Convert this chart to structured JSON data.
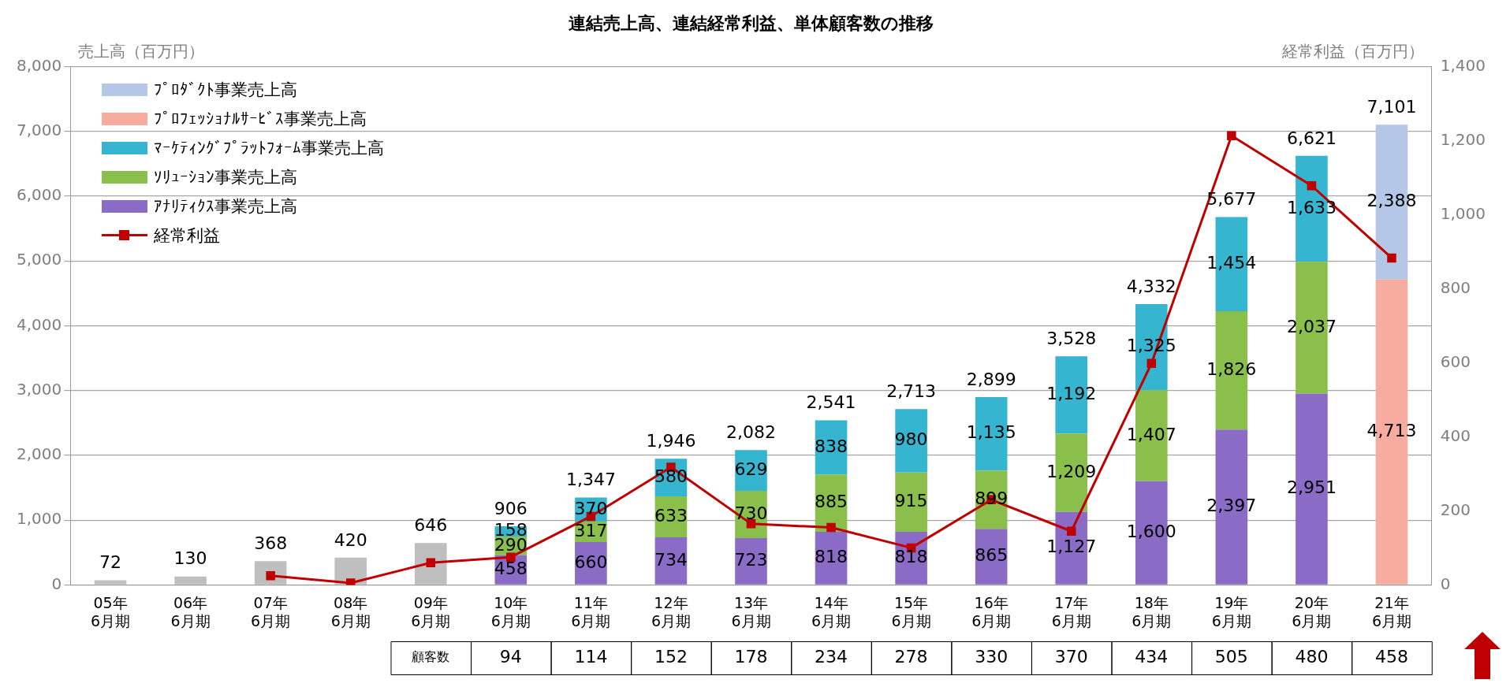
{
  "chart_data": {
    "type": "bar",
    "title": "連結売上高、連結経常利益、単体顧客数の推移",
    "ylabel": "売上高（百万円）",
    "y2label": "経常利益（百万円）",
    "categories": [
      "05年\n6月期",
      "06年\n6月期",
      "07年\n6月期",
      "08年\n6月期",
      "09年\n6月期",
      "10年\n6月期",
      "11年\n6月期",
      "12年\n6月期",
      "13年\n6月期",
      "14年\n6月期",
      "15年\n6月期",
      "16年\n6月期",
      "17年\n6月期",
      "18年\n6月期",
      "19年\n6月期",
      "20年\n6月期",
      "21年\n6月期"
    ],
    "stacked": true,
    "series": [
      {
        "color": "#bfbfbf",
        "values": [
          72,
          130,
          368,
          420,
          646,
          null,
          null,
          null,
          null,
          null,
          null,
          null,
          null,
          null,
          null,
          null,
          null
        ]
      },
      {
        "name": "ｱﾅﾘﾃｨｸｽ事業売上高",
        "color": "#8a6cc7",
        "values": [
          null,
          null,
          null,
          null,
          null,
          458,
          660,
          734,
          723,
          818,
          818,
          865,
          1127,
          1600,
          2397,
          2951,
          null
        ],
        "value_labels": [
          null,
          null,
          null,
          null,
          null,
          "458",
          "660",
          "734",
          "723",
          "818",
          "818",
          "865",
          "1,127",
          "1,600",
          "2,397",
          "2,951",
          null
        ]
      },
      {
        "name": "ｿﾘｭｰｼｮﾝ事業売上高",
        "color": "#8bbf4b",
        "values": [
          null,
          null,
          null,
          null,
          null,
          290,
          317,
          633,
          730,
          885,
          915,
          899,
          1209,
          1407,
          1826,
          2037,
          null
        ],
        "value_labels": [
          null,
          null,
          null,
          null,
          null,
          "290",
          "317",
          "633",
          "730",
          "885",
          "915",
          "899",
          "1,209",
          "1,407",
          "1,826",
          "2,037",
          null
        ]
      },
      {
        "name": "ﾏｰｹﾃｨﾝｸﾞﾌﾟﾗｯﾄﾌｫｰﾑ事業売上高",
        "color": "#35b5cf",
        "values": [
          null,
          null,
          null,
          null,
          null,
          158,
          370,
          580,
          629,
          838,
          980,
          1135,
          1192,
          1325,
          1454,
          1633,
          null
        ],
        "value_labels": [
          null,
          null,
          null,
          null,
          null,
          "158",
          "370",
          "580",
          "629",
          "838",
          "980",
          "1,135",
          "1,192",
          "1,325",
          "1,454",
          "1,633",
          null
        ]
      },
      {
        "name": "ﾌﾟﾛﾌｪｯｼｮﾅﾙｻｰﾋﾞｽ事業売上高",
        "color": "#f8aca0",
        "values": [
          null,
          null,
          null,
          null,
          null,
          null,
          null,
          null,
          null,
          null,
          null,
          null,
          null,
          null,
          null,
          null,
          4713
        ],
        "value_labels": [
          null,
          null,
          null,
          null,
          null,
          null,
          null,
          null,
          null,
          null,
          null,
          null,
          null,
          null,
          null,
          null,
          "4,713"
        ]
      },
      {
        "name": "ﾌﾟﾛﾀﾞｸﾄ事業売上高",
        "color": "#b4c7e7",
        "values": [
          null,
          null,
          null,
          null,
          null,
          null,
          null,
          null,
          null,
          null,
          null,
          null,
          null,
          null,
          null,
          null,
          2388
        ],
        "value_labels": [
          null,
          null,
          null,
          null,
          null,
          null,
          null,
          null,
          null,
          null,
          null,
          null,
          null,
          null,
          null,
          null,
          "2,388"
        ]
      },
      {
        "name": "経常利益",
        "type": "line",
        "axis": "y2",
        "color": "#c00000",
        "marker": "square",
        "values": [
          null,
          null,
          25,
          5,
          60,
          75,
          185,
          318,
          165,
          155,
          100,
          230,
          145,
          598,
          1213,
          1078,
          883
        ]
      }
    ],
    "annotations": [
      "顧客数",
      "94",
      "114",
      "152",
      "178",
      "234",
      "278",
      "330",
      "370",
      "434",
      "505",
      "480",
      "458"
    ],
    "totals": [
      "72",
      "130",
      "368",
      "420",
      "646",
      "906",
      "1,347",
      "1,946",
      "2,082",
      "2,541",
      "2,713",
      "2,899",
      "3,528",
      "4,332",
      "5,677",
      "6,621",
      "7,101"
    ],
    "ylim": [
      0,
      8000
    ],
    "yticks": [
      0,
      {
        "value": 1000,
        "label": "1,000"
      },
      {
        "value": 2000,
        "label": "2,000"
      },
      {
        "value": 3000,
        "label": "3,000"
      },
      {
        "value": 4000,
        "label": "4,000"
      },
      {
        "value": 5000,
        "label": "5,000"
      },
      {
        "value": 6000,
        "label": "6,000"
      },
      {
        "value": 7000,
        "label": "7,000"
      },
      {
        "value": 8000,
        "label": "8,000"
      }
    ],
    "y2lim": [
      0,
      1400
    ],
    "y2ticks": [
      0,
      200,
      400,
      600,
      800,
      {
        "value": 1000,
        "label": "1,000"
      },
      {
        "value": 1200,
        "label": "1,200"
      },
      {
        "value": 1400,
        "label": "1,400"
      }
    ],
    "grid": "y",
    "legend": "top left"
  }
}
